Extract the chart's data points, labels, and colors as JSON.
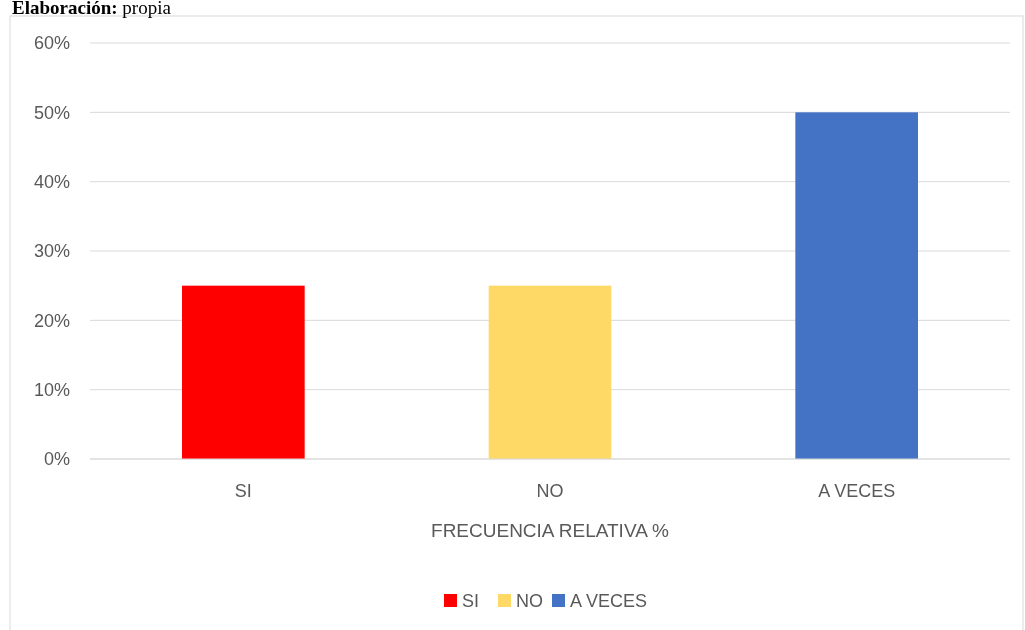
{
  "chart_data": {
    "type": "bar",
    "xlabel": "FRECUENCIA RELATIVA %",
    "annotations": [
      "Elaboración: propia"
    ],
    "categories": [
      "SI",
      "NO",
      "A VECES"
    ],
    "series": [
      {
        "name": "SI",
        "color": "#ff0000",
        "values": [
          25,
          null,
          null
        ]
      },
      {
        "name": "NO",
        "color": "#ffd966",
        "values": [
          null,
          25,
          null
        ]
      },
      {
        "name": "A VECES",
        "color": "#4472c4",
        "values": [
          null,
          null,
          50
        ]
      }
    ],
    "ylim": [
      0,
      60
    ],
    "yticks": [
      {
        "value": 0,
        "label": "0%"
      },
      {
        "value": 10,
        "label": "10%"
      },
      {
        "value": 20,
        "label": "20%"
      },
      {
        "value": 30,
        "label": "30%"
      },
      {
        "value": 40,
        "label": "40%"
      },
      {
        "value": 50,
        "label": "50%"
      },
      {
        "value": 60,
        "label": "60%"
      }
    ],
    "grid": "y",
    "legend": "bottom"
  }
}
